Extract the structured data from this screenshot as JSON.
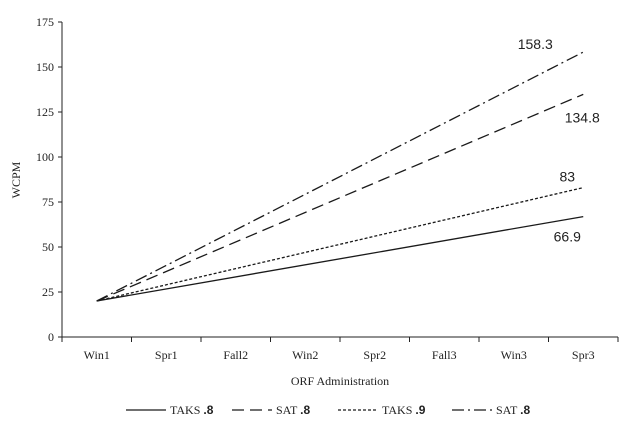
{
  "chart_data": {
    "type": "line",
    "title": "",
    "xlabel": "ORF Administration",
    "ylabel": "WCPM",
    "categories": [
      "Win1",
      "Spr1",
      "Fall2",
      "Win2",
      "Spr2",
      "Fall3",
      "Win3",
      "Spr3"
    ],
    "ylim": [
      0,
      175
    ],
    "yticks": [
      0,
      25,
      50,
      75,
      100,
      125,
      150,
      175
    ],
    "grid": false,
    "legend_position": "bottom",
    "series": [
      {
        "name": "TAKS",
        "name_suffix": ".8",
        "style": "solid",
        "color": "#1a1a1a",
        "start": 20,
        "end": 66.9,
        "end_label": "66.9"
      },
      {
        "name": "SAT",
        "name_suffix": ".8",
        "style": "dashed",
        "color": "#1a1a1a",
        "start": 20,
        "end": 134.8,
        "end_label": "134.8"
      },
      {
        "name": "TAKS",
        "name_suffix": ".9",
        "style": "dotted",
        "color": "#1a1a1a",
        "start": 20,
        "end": 83,
        "end_label": "83"
      },
      {
        "name": "SAT",
        "name_suffix": ".8",
        "style": "dashdot",
        "color": "#1a1a1a",
        "start": 20,
        "end": 158.3,
        "end_label": "158.3"
      }
    ]
  }
}
